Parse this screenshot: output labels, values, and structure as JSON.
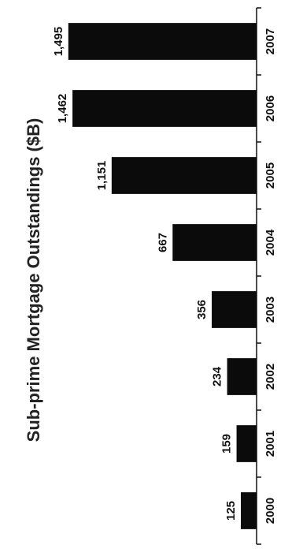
{
  "chart_data": {
    "type": "bar",
    "title": "Sub-prime Mortgage Outstandings ($B)",
    "categories": [
      "2000",
      "2001",
      "2002",
      "2003",
      "2004",
      "2005",
      "2006",
      "2007"
    ],
    "values": [
      125,
      159,
      234,
      356,
      667,
      1151,
      1462,
      1495
    ],
    "value_labels": [
      "125",
      "159",
      "234",
      "356",
      "667",
      "1,151",
      "1,462",
      "1,495"
    ],
    "xlabel": "",
    "ylabel": "",
    "ylim": [
      0,
      1600
    ],
    "grid": false,
    "legend": "none",
    "orientation": "rotated",
    "colors": {
      "bar": "#0b0b0b",
      "text": "#111111"
    }
  }
}
